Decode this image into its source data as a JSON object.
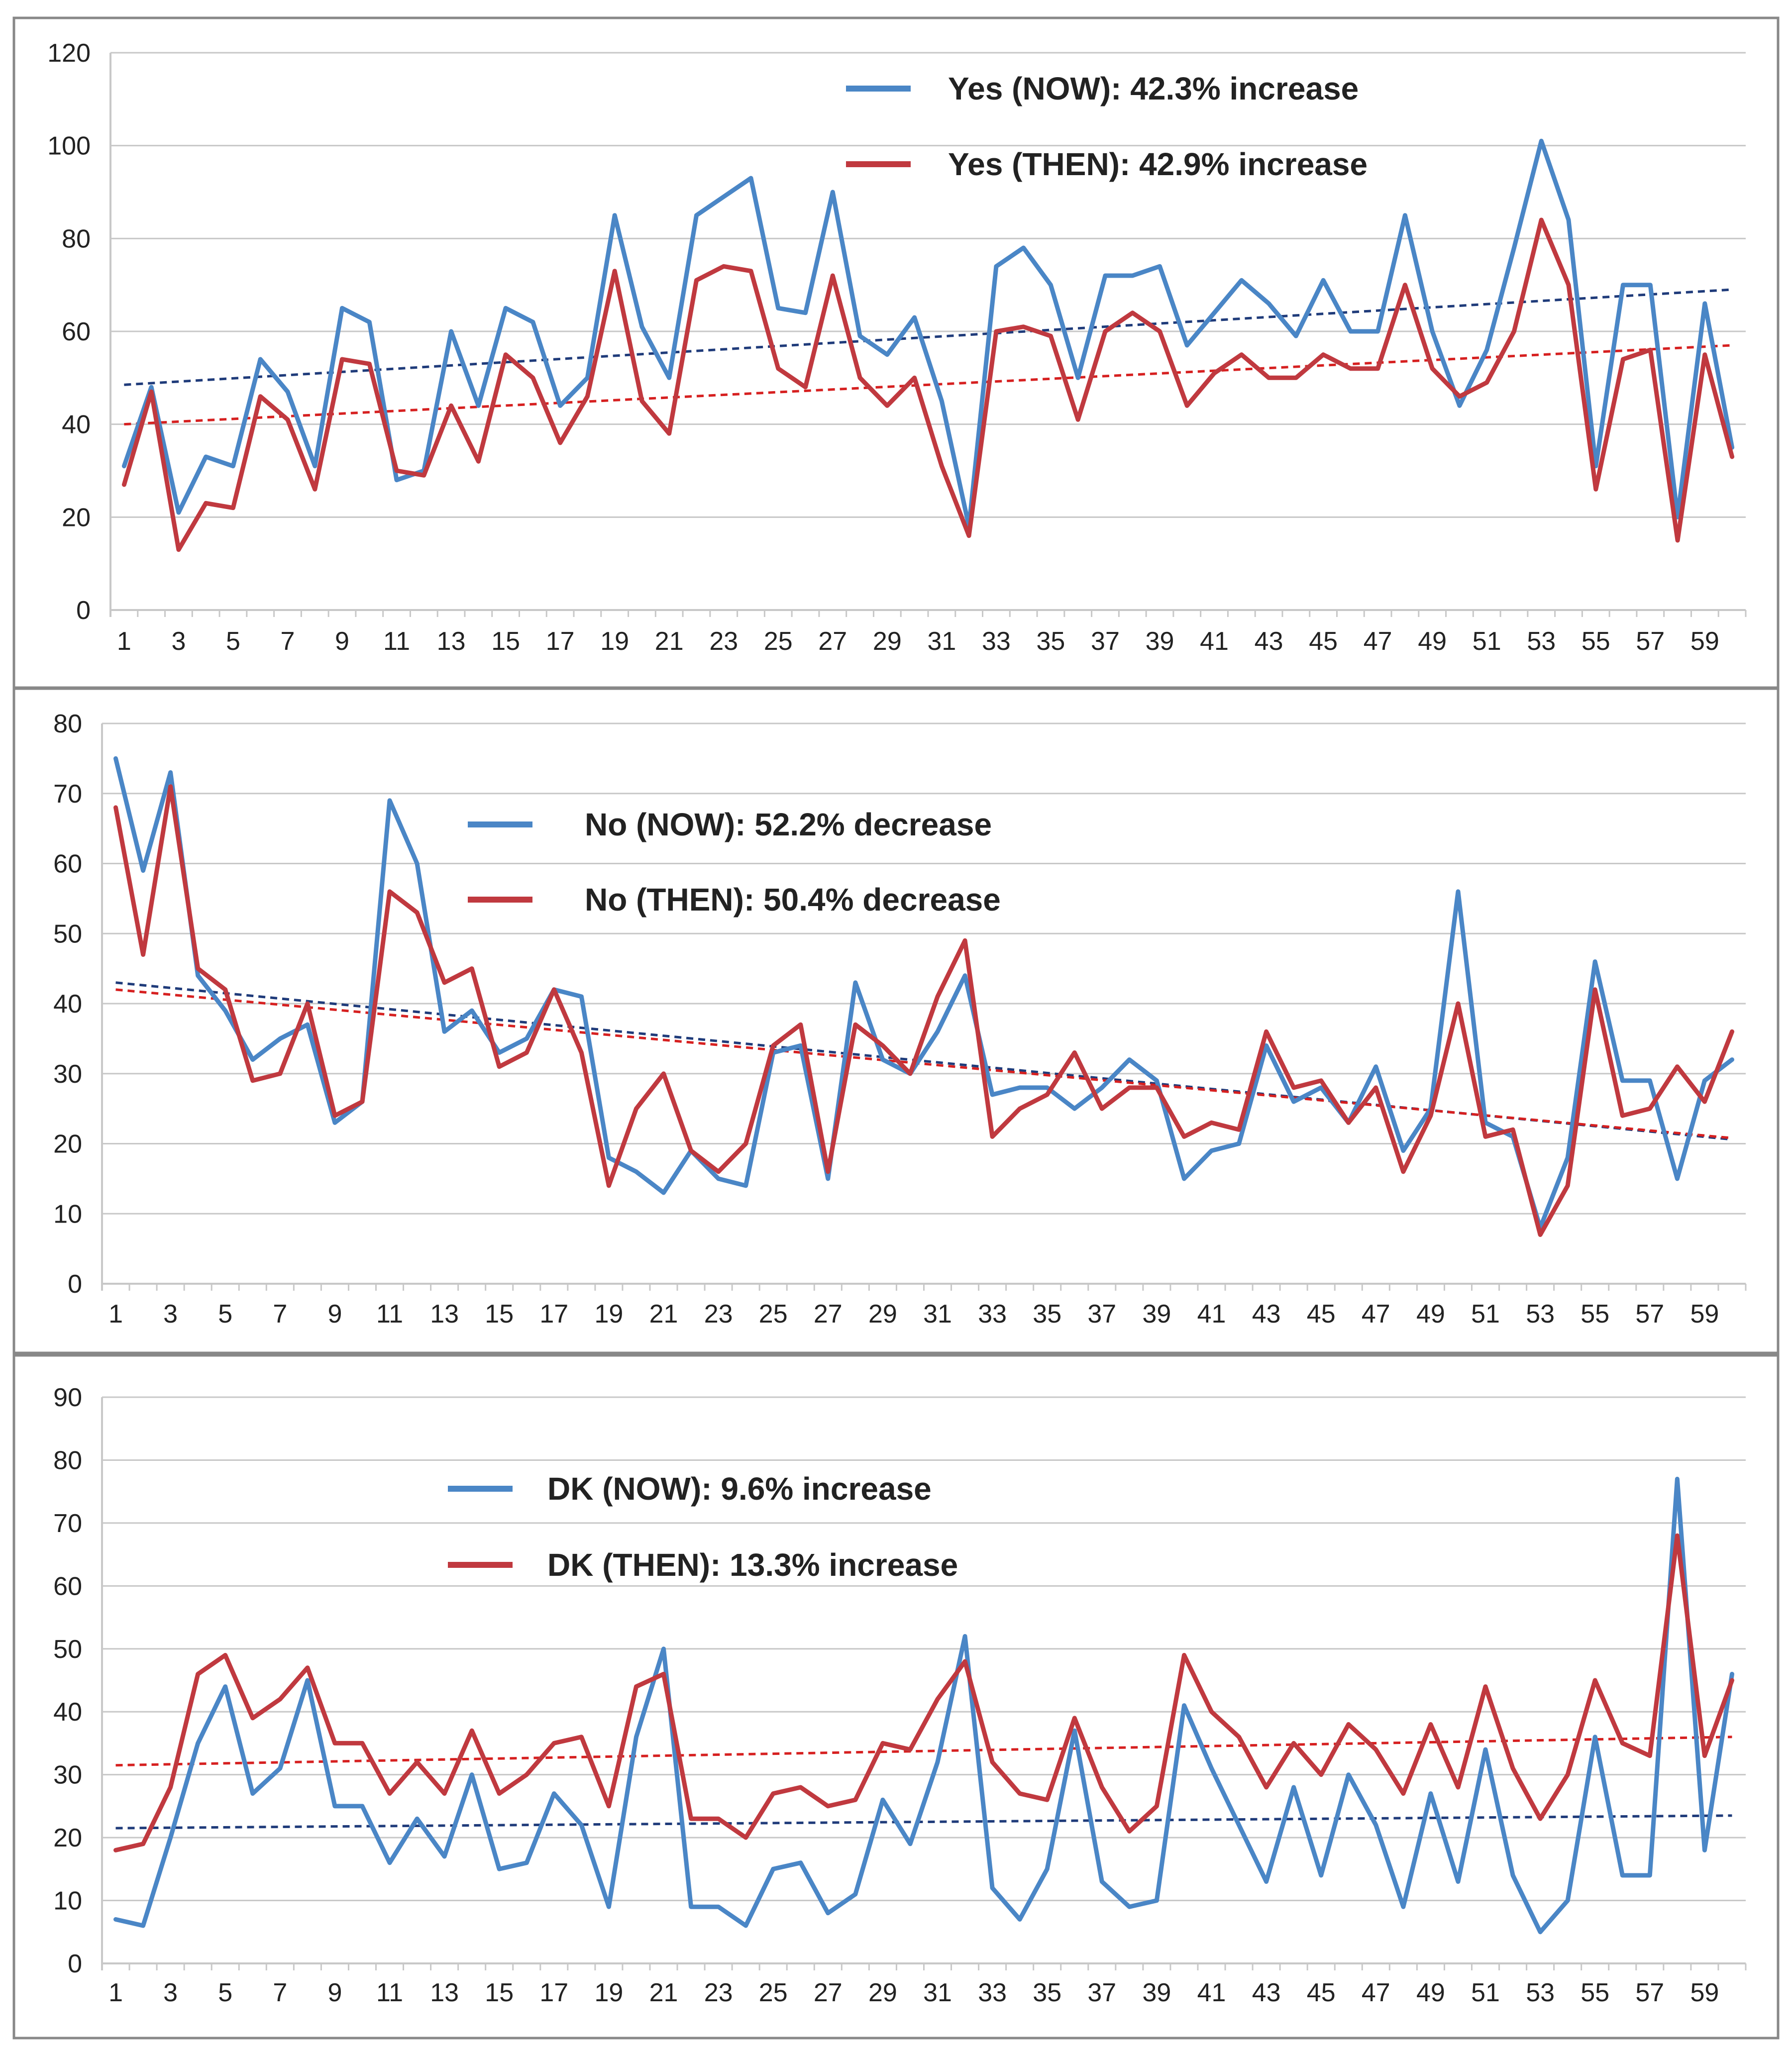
{
  "colors": {
    "now": "#4A86C6",
    "then": "#C0393F",
    "trend_now": "#1F3B7A",
    "trend_then": "#D62020",
    "grid": "#C8C8C8",
    "frame": "#888888"
  },
  "chart_data": [
    {
      "type": "line",
      "title": "",
      "xlabel": "",
      "ylabel": "",
      "ylim": [
        0,
        120
      ],
      "yticks": [
        "0",
        "20",
        "40",
        "60",
        "80",
        "100",
        "120"
      ],
      "xticks": [
        "1",
        "3",
        "5",
        "7",
        "9",
        "11",
        "13",
        "15",
        "17",
        "19",
        "21",
        "23",
        "25",
        "27",
        "29",
        "31",
        "33",
        "35",
        "37",
        "39",
        "41",
        "43",
        "45",
        "47",
        "49",
        "51",
        "53",
        "55",
        "57",
        "59"
      ],
      "legend": [
        "Yes (NOW): 42.3% increase",
        "Yes (THEN): 42.9% increase"
      ],
      "series": [
        {
          "name": "Yes (NOW)",
          "color_key": "now",
          "values": [
            31,
            48,
            21,
            33,
            31,
            54,
            47,
            31,
            65,
            62,
            28,
            30,
            60,
            44,
            65,
            62,
            44,
            50,
            85,
            61,
            50,
            85,
            89,
            93,
            65,
            64,
            90,
            59,
            55,
            63,
            45,
            18,
            74,
            78,
            70,
            50,
            72,
            72,
            74,
            57,
            64,
            71,
            66,
            59,
            71,
            60,
            60,
            85,
            60,
            44,
            56,
            78,
            101,
            84,
            31,
            70,
            70,
            20,
            66,
            35
          ]
        },
        {
          "name": "Yes (THEN)",
          "color_key": "then",
          "values": [
            27,
            47,
            13,
            23,
            22,
            46,
            41,
            26,
            54,
            53,
            30,
            29,
            44,
            32,
            55,
            50,
            36,
            46,
            73,
            45,
            38,
            71,
            74,
            73,
            52,
            48,
            72,
            50,
            44,
            50,
            31,
            16,
            60,
            61,
            59,
            41,
            60,
            64,
            60,
            44,
            51,
            55,
            50,
            50,
            55,
            52,
            52,
            70,
            52,
            46,
            49,
            60,
            84,
            70,
            26,
            54,
            56,
            15,
            55,
            33
          ]
        }
      ],
      "trend": [
        {
          "name": "Yes (NOW) trend",
          "color_key": "trend_now",
          "start": 48.5,
          "end": 69
        },
        {
          "name": "Yes (THEN) trend",
          "color_key": "trend_then",
          "start": 40,
          "end": 57
        }
      ]
    },
    {
      "type": "line",
      "title": "",
      "xlabel": "",
      "ylabel": "",
      "ylim": [
        0,
        80
      ],
      "yticks": [
        "0",
        "10",
        "20",
        "30",
        "40",
        "50",
        "60",
        "70",
        "80"
      ],
      "xticks": [
        "1",
        "3",
        "5",
        "7",
        "9",
        "11",
        "13",
        "15",
        "17",
        "19",
        "21",
        "23",
        "25",
        "27",
        "29",
        "31",
        "33",
        "35",
        "37",
        "39",
        "41",
        "43",
        "45",
        "47",
        "49",
        "51",
        "53",
        "55",
        "57",
        "59"
      ],
      "legend": [
        "No (NOW): 52.2% decrease",
        "No (THEN): 50.4% decrease"
      ],
      "series": [
        {
          "name": "No (NOW)",
          "color_key": "now",
          "values": [
            75,
            59,
            73,
            44,
            39,
            32,
            35,
            37,
            23,
            26,
            69,
            60,
            36,
            39,
            33,
            35,
            42,
            41,
            18,
            16,
            13,
            19,
            15,
            14,
            33,
            34,
            15,
            43,
            32,
            30,
            36,
            44,
            27,
            28,
            28,
            25,
            28,
            32,
            29,
            15,
            19,
            20,
            34,
            26,
            28,
            23,
            31,
            19,
            25,
            56,
            23,
            21,
            8,
            18,
            46,
            29,
            29,
            15,
            29,
            32
          ]
        },
        {
          "name": "No (THEN)",
          "color_key": "then",
          "values": [
            68,
            47,
            71,
            45,
            42,
            29,
            30,
            40,
            24,
            26,
            56,
            53,
            43,
            45,
            31,
            33,
            42,
            33,
            14,
            25,
            30,
            19,
            16,
            20,
            34,
            37,
            16,
            37,
            34,
            30,
            41,
            49,
            21,
            25,
            27,
            33,
            25,
            28,
            28,
            21,
            23,
            22,
            36,
            28,
            29,
            23,
            28,
            16,
            24,
            40,
            21,
            22,
            7,
            14,
            42,
            24,
            25,
            31,
            26,
            36
          ]
        }
      ],
      "trend": [
        {
          "name": "No (NOW) trend",
          "color_key": "trend_now",
          "start": 43,
          "end": 20.6
        },
        {
          "name": "No (THEN) trend",
          "color_key": "trend_then",
          "start": 42,
          "end": 20.8
        }
      ]
    },
    {
      "type": "line",
      "title": "",
      "xlabel": "",
      "ylabel": "",
      "ylim": [
        0,
        90
      ],
      "yticks": [
        "0",
        "10",
        "20",
        "30",
        "40",
        "50",
        "60",
        "70",
        "80",
        "90"
      ],
      "xticks": [
        "1",
        "3",
        "5",
        "7",
        "9",
        "11",
        "13",
        "15",
        "17",
        "19",
        "21",
        "23",
        "25",
        "27",
        "29",
        "31",
        "33",
        "35",
        "37",
        "39",
        "41",
        "43",
        "45",
        "47",
        "49",
        "51",
        "53",
        "55",
        "57",
        "59"
      ],
      "legend": [
        "DK (NOW): 9.6% increase",
        "DK (THEN): 13.3% increase"
      ],
      "series": [
        {
          "name": "DK (NOW)",
          "color_key": "now",
          "values": [
            7,
            6,
            20,
            35,
            44,
            27,
            31,
            45,
            25,
            25,
            16,
            23,
            17,
            30,
            15,
            16,
            27,
            22,
            9,
            36,
            50,
            9,
            9,
            6,
            15,
            16,
            8,
            11,
            26,
            19,
            32,
            52,
            12,
            7,
            15,
            37,
            13,
            9,
            10,
            41,
            31,
            22,
            13,
            28,
            14,
            30,
            22,
            9,
            27,
            13,
            34,
            14,
            5,
            10,
            36,
            14,
            14,
            77,
            18,
            46
          ]
        },
        {
          "name": "DK (THEN)",
          "color_key": "then",
          "values": [
            18,
            19,
            28,
            46,
            49,
            39,
            42,
            47,
            35,
            35,
            27,
            32,
            27,
            37,
            27,
            30,
            35,
            36,
            25,
            44,
            46,
            23,
            23,
            20,
            27,
            28,
            25,
            26,
            35,
            34,
            42,
            48,
            32,
            27,
            26,
            39,
            28,
            21,
            25,
            49,
            40,
            36,
            28,
            35,
            30,
            38,
            34,
            27,
            38,
            28,
            44,
            31,
            23,
            30,
            45,
            35,
            33,
            68,
            33,
            45
          ]
        }
      ],
      "trend": [
        {
          "name": "DK (NOW) trend",
          "color_key": "trend_now",
          "start": 21.5,
          "end": 23.5
        },
        {
          "name": "DK (THEN) trend",
          "color_key": "trend_then",
          "start": 31.5,
          "end": 36
        }
      ]
    }
  ]
}
